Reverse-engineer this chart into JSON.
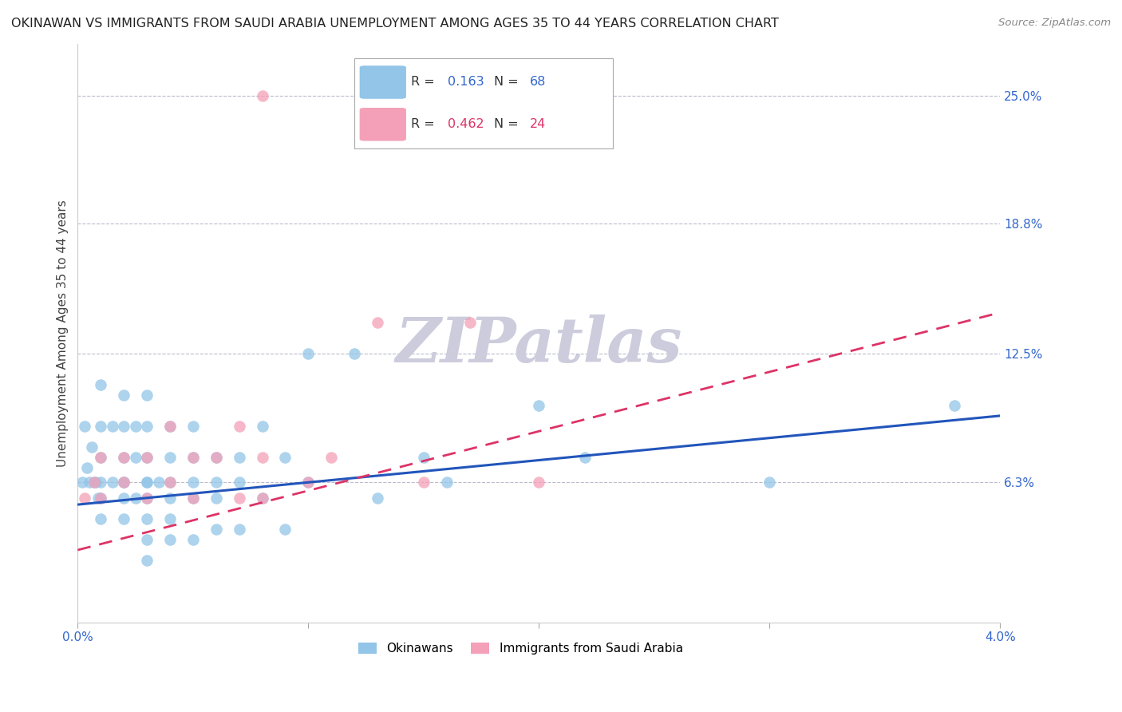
{
  "title": "OKINAWAN VS IMMIGRANTS FROM SAUDI ARABIA UNEMPLOYMENT AMONG AGES 35 TO 44 YEARS CORRELATION CHART",
  "source": "Source: ZipAtlas.com",
  "ylabel": "Unemployment Among Ages 35 to 44 years",
  "right_yticks": [
    "25.0%",
    "18.8%",
    "12.5%",
    "6.3%"
  ],
  "right_ytick_values": [
    0.25,
    0.188,
    0.125,
    0.063
  ],
  "xlim": [
    0.0,
    0.04
  ],
  "ylim": [
    -0.005,
    0.275
  ],
  "blue_R": "0.163",
  "blue_N": "68",
  "pink_R": "0.462",
  "pink_N": "24",
  "legend_label_blue": "Okinawans",
  "legend_label_pink": "Immigrants from Saudi Arabia",
  "blue_color": "#92C5E8",
  "pink_color": "#F4A0B8",
  "line_blue_color": "#2255BB",
  "line_pink_color": "#DD3366",
  "background_color": "#FFFFFF",
  "watermark_color": "#CCCCDD",
  "title_fontsize": 11.5,
  "axis_label_fontsize": 11,
  "tick_fontsize": 11,
  "blue_scatter_x": [
    0.0002,
    0.0003,
    0.0004,
    0.0005,
    0.0006,
    0.0007,
    0.0008,
    0.0009,
    0.001,
    0.001,
    0.001,
    0.001,
    0.001,
    0.001,
    0.0015,
    0.0015,
    0.002,
    0.002,
    0.002,
    0.002,
    0.002,
    0.002,
    0.002,
    0.0025,
    0.0025,
    0.0025,
    0.003,
    0.003,
    0.003,
    0.003,
    0.003,
    0.003,
    0.003,
    0.003,
    0.003,
    0.0035,
    0.004,
    0.004,
    0.004,
    0.004,
    0.004,
    0.004,
    0.005,
    0.005,
    0.005,
    0.005,
    0.005,
    0.006,
    0.006,
    0.006,
    0.006,
    0.007,
    0.007,
    0.007,
    0.008,
    0.008,
    0.009,
    0.009,
    0.01,
    0.01,
    0.012,
    0.013,
    0.015,
    0.016,
    0.02,
    0.022,
    0.03,
    0.038
  ],
  "blue_scatter_y": [
    0.063,
    0.09,
    0.07,
    0.063,
    0.08,
    0.063,
    0.063,
    0.055,
    0.11,
    0.09,
    0.075,
    0.063,
    0.055,
    0.045,
    0.09,
    0.063,
    0.105,
    0.09,
    0.075,
    0.063,
    0.063,
    0.055,
    0.045,
    0.09,
    0.075,
    0.055,
    0.105,
    0.09,
    0.075,
    0.063,
    0.063,
    0.055,
    0.045,
    0.035,
    0.025,
    0.063,
    0.09,
    0.075,
    0.063,
    0.055,
    0.045,
    0.035,
    0.09,
    0.075,
    0.063,
    0.055,
    0.035,
    0.075,
    0.063,
    0.055,
    0.04,
    0.075,
    0.063,
    0.04,
    0.09,
    0.055,
    0.075,
    0.04,
    0.125,
    0.063,
    0.125,
    0.055,
    0.075,
    0.063,
    0.1,
    0.075,
    0.063,
    0.1
  ],
  "pink_scatter_x": [
    0.0003,
    0.0007,
    0.001,
    0.001,
    0.002,
    0.002,
    0.003,
    0.003,
    0.004,
    0.004,
    0.005,
    0.005,
    0.006,
    0.007,
    0.007,
    0.008,
    0.008,
    0.01,
    0.011,
    0.013,
    0.015,
    0.017,
    0.02,
    0.008
  ],
  "pink_scatter_y": [
    0.055,
    0.063,
    0.075,
    0.055,
    0.075,
    0.063,
    0.075,
    0.055,
    0.09,
    0.063,
    0.075,
    0.055,
    0.075,
    0.09,
    0.055,
    0.075,
    0.055,
    0.063,
    0.075,
    0.14,
    0.063,
    0.14,
    0.063,
    0.25
  ],
  "blue_line_x": [
    0.0,
    0.04
  ],
  "blue_line_y": [
    0.052,
    0.095
  ],
  "pink_line_x": [
    0.0,
    0.04
  ],
  "pink_line_y": [
    0.03,
    0.145
  ]
}
